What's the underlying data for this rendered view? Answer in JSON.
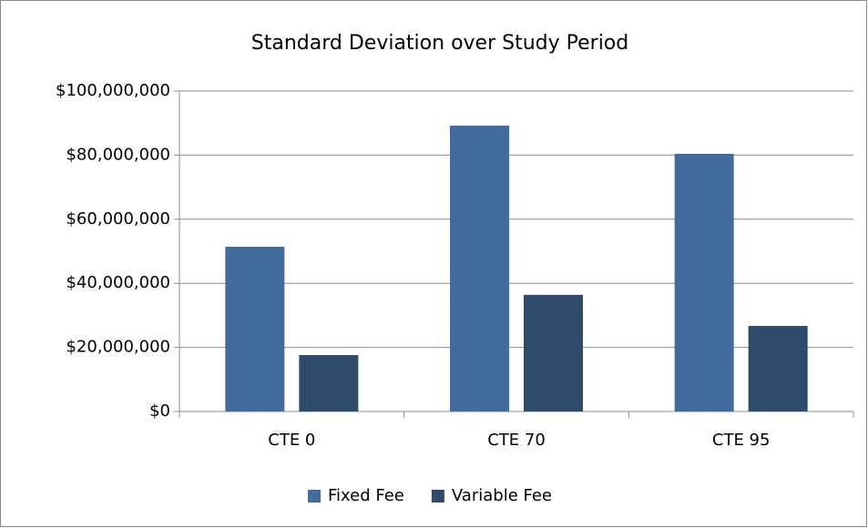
{
  "chart_data": {
    "type": "bar",
    "title": "Standard Deviation over Study Period",
    "categories": [
      "CTE 0",
      "CTE 70",
      "CTE 95"
    ],
    "series": [
      {
        "name": "Fixed Fee",
        "color": "#426c9e",
        "values": [
          51400000,
          89200000,
          80400000
        ]
      },
      {
        "name": "Variable Fee",
        "color": "#2e4a6c",
        "values": [
          17600000,
          36400000,
          26700000
        ]
      }
    ],
    "ylim": [
      0,
      100000000
    ],
    "yticks": [
      {
        "value": 0,
        "label": "$0"
      },
      {
        "value": 20000000,
        "label": "$20,000,000"
      },
      {
        "value": 40000000,
        "label": "$40,000,000"
      },
      {
        "value": 60000000,
        "label": "$60,000,000"
      },
      {
        "value": 80000000,
        "label": "$80,000,000"
      },
      {
        "value": 100000000,
        "label": "$100,000,000"
      }
    ],
    "grid": true,
    "legend": "bottom"
  }
}
